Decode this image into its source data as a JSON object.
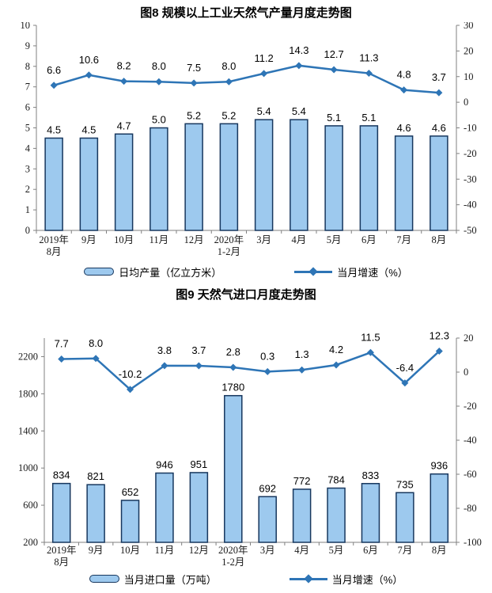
{
  "colors": {
    "bar_fill": "#9DC9EE",
    "bar_border": "#17375E",
    "line": "#2E75B6",
    "axis": "#808080",
    "text": "#000000"
  },
  "chart_data": [
    {
      "type": "bar+line",
      "title": "图8  规模以上工业天然气产量月度走势图",
      "categories": [
        [
          "2019年",
          "8月"
        ],
        [
          "9月"
        ],
        [
          "10月"
        ],
        [
          "11月"
        ],
        [
          "12月"
        ],
        [
          "2020年",
          "1-2月"
        ],
        [
          "3月"
        ],
        [
          "4月"
        ],
        [
          "5月"
        ],
        [
          "6月"
        ],
        [
          "7月"
        ],
        [
          "8月"
        ]
      ],
      "series": [
        {
          "kind": "bar",
          "name": "日均产量（亿立方米）",
          "axis": "left",
          "values": [
            4.5,
            4.5,
            4.7,
            5.0,
            5.2,
            5.2,
            5.4,
            5.4,
            5.1,
            5.1,
            4.6,
            4.6
          ],
          "labels": [
            "4.5",
            "4.5",
            "4.7",
            "5.0",
            "5.2",
            "5.2",
            "5.4",
            "5.4",
            "5.1",
            "5.1",
            "4.6",
            "4.6"
          ]
        },
        {
          "kind": "line",
          "name": "当月增速（%）",
          "axis": "right",
          "values": [
            6.6,
            10.6,
            8.2,
            8.0,
            7.5,
            8.0,
            11.2,
            14.3,
            12.7,
            11.3,
            4.8,
            3.7
          ],
          "labels": [
            "6.6",
            "10.6",
            "8.2",
            "8.0",
            "7.5",
            "8.0",
            "11.2",
            "14.3",
            "12.7",
            "11.3",
            "4.8",
            "3.7"
          ]
        }
      ],
      "left_axis": {
        "min": 0,
        "max": 10,
        "ticks": [
          10,
          9,
          8,
          7,
          6,
          5,
          4,
          3,
          2,
          1,
          0
        ]
      },
      "right_axis": {
        "min": -50,
        "max": 30,
        "ticks": [
          30,
          20,
          10,
          0,
          -10,
          -20,
          -30,
          -40,
          -50
        ]
      },
      "grid": false,
      "legend_position": "bottom"
    },
    {
      "type": "bar+line",
      "title": "图9  天然气进口月度走势图",
      "categories": [
        [
          "2019年",
          "8月"
        ],
        [
          "9月"
        ],
        [
          "10月"
        ],
        [
          "11月"
        ],
        [
          "12月"
        ],
        [
          "2020年",
          "1-2月"
        ],
        [
          "3月"
        ],
        [
          "4月"
        ],
        [
          "5月"
        ],
        [
          "6月"
        ],
        [
          "7月"
        ],
        [
          "8月"
        ]
      ],
      "series": [
        {
          "kind": "bar",
          "name": "当月进口量（万吨）",
          "axis": "left",
          "values": [
            834,
            821,
            652,
            946,
            951,
            1780,
            692,
            772,
            784,
            833,
            735,
            936
          ],
          "labels": [
            "834",
            "821",
            "652",
            "946",
            "951",
            "1780",
            "692",
            "772",
            "784",
            "833",
            "735",
            "936"
          ]
        },
        {
          "kind": "line",
          "name": "当月增速（%）",
          "axis": "right",
          "values": [
            7.7,
            8.0,
            -10.2,
            3.8,
            3.7,
            2.8,
            0.3,
            1.3,
            4.2,
            11.5,
            -6.4,
            12.3
          ],
          "labels": [
            "7.7",
            "8.0",
            "-10.2",
            "3.8",
            "3.7",
            "2.8",
            "0.3",
            "1.3",
            "4.2",
            "11.5",
            "-6.4",
            "12.3"
          ]
        }
      ],
      "left_axis": {
        "min": 200,
        "max": 2400,
        "ticks": [
          2200,
          1800,
          1400,
          1000,
          600,
          200
        ]
      },
      "right_axis": {
        "min": -100,
        "max": 20,
        "ticks": [
          20,
          0,
          -20,
          -40,
          -60,
          -80,
          -100
        ]
      },
      "grid": false,
      "legend_position": "bottom"
    }
  ]
}
